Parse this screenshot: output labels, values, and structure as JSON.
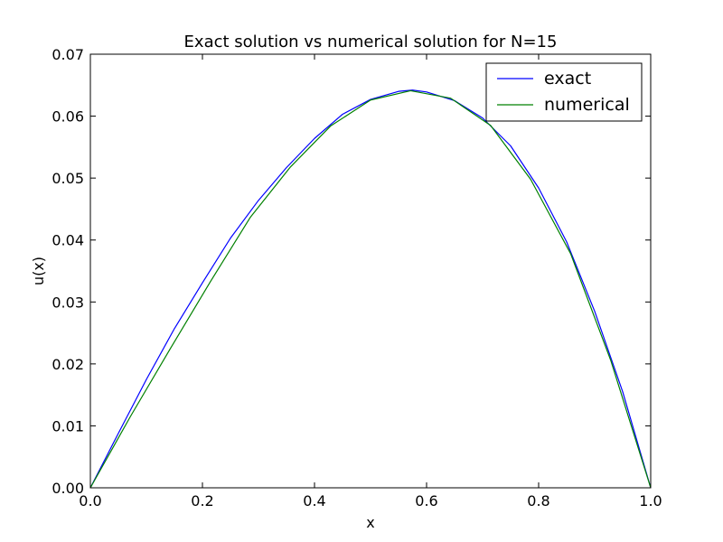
{
  "chart_data": {
    "type": "line",
    "title": "Exact solution vs numerical solution for N=15",
    "xlabel": "x",
    "ylabel": "u(x)",
    "xlim": [
      0.0,
      1.0
    ],
    "ylim": [
      0.0,
      0.07
    ],
    "xticks": [
      "0.0",
      "0.2",
      "0.4",
      "0.6",
      "0.8",
      "1.0"
    ],
    "yticks": [
      "0.00",
      "0.01",
      "0.02",
      "0.03",
      "0.04",
      "0.05",
      "0.06",
      "0.07"
    ],
    "xtick_values": [
      0.0,
      0.2,
      0.4,
      0.6,
      0.8,
      1.0
    ],
    "ytick_values": [
      0.0,
      0.01,
      0.02,
      0.03,
      0.04,
      0.05,
      0.06,
      0.07
    ],
    "grid": false,
    "legend": "top-right",
    "series": [
      {
        "name": "exact",
        "color": "#0000ff",
        "x": [
          0.0,
          0.05,
          0.1,
          0.15,
          0.2,
          0.25,
          0.3,
          0.35,
          0.4,
          0.45,
          0.5,
          0.55,
          0.575,
          0.6,
          0.65,
          0.7,
          0.75,
          0.8,
          0.85,
          0.9,
          0.95,
          1.0
        ],
        "y": [
          0.0,
          0.0088,
          0.0175,
          0.0257,
          0.0331,
          0.0403,
          0.0464,
          0.0517,
          0.0564,
          0.0603,
          0.0627,
          0.064,
          0.0642,
          0.0639,
          0.0625,
          0.0597,
          0.0552,
          0.0484,
          0.0397,
          0.0285,
          0.0155,
          0.0
        ]
      },
      {
        "name": "numerical",
        "color": "#008000",
        "x": [
          0.0,
          0.0714,
          0.1429,
          0.2143,
          0.2857,
          0.3571,
          0.4286,
          0.5,
          0.5714,
          0.6429,
          0.7143,
          0.7857,
          0.8571,
          0.9286,
          1.0
        ],
        "y": [
          0.0,
          0.0115,
          0.0225,
          0.0333,
          0.0437,
          0.0518,
          0.0584,
          0.0626,
          0.0641,
          0.0629,
          0.0585,
          0.0498,
          0.0378,
          0.0206,
          0.0
        ]
      }
    ]
  }
}
